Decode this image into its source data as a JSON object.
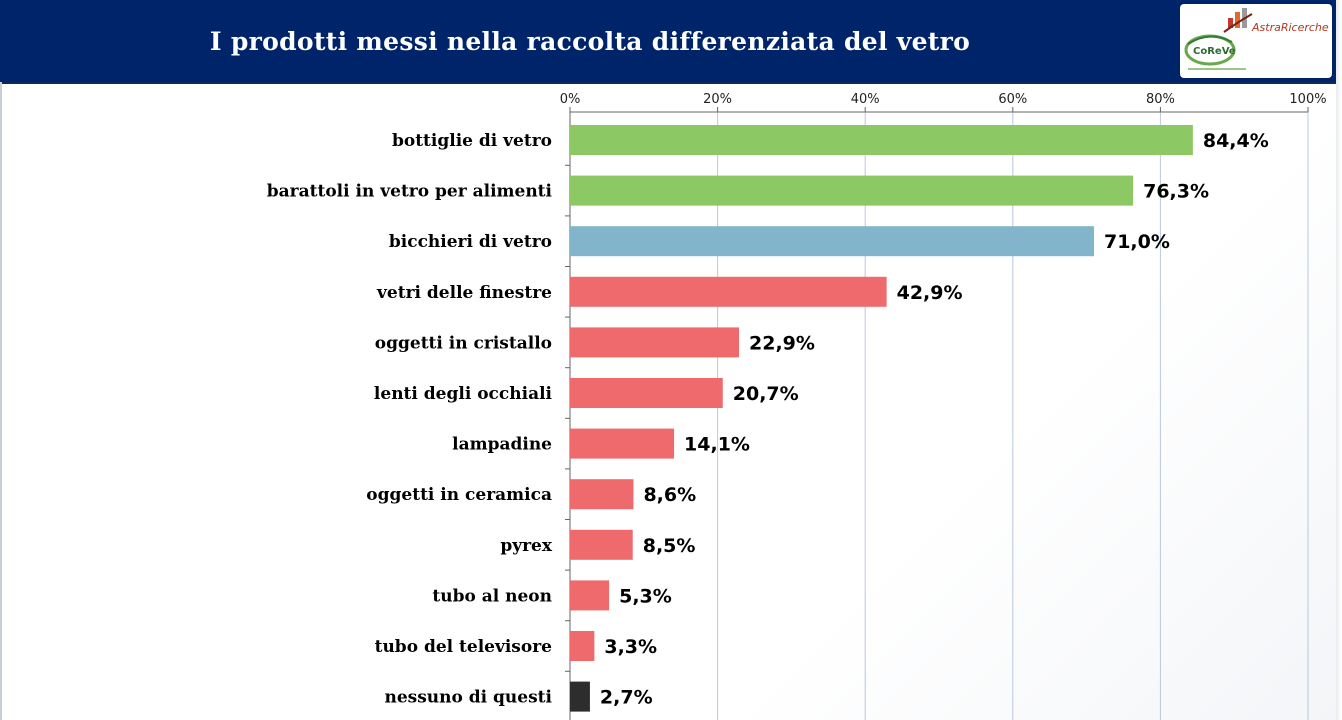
{
  "header": {
    "title": "I prodotti messi nella raccolta differenziata del vetro"
  },
  "logos": {
    "research_logo_text": "AstraRicerche",
    "coreve_logo_text": "CoReVe",
    "research_icon": "bar-chart-logo-icon",
    "coreve_icon": "coreve-logo-icon"
  },
  "colors": {
    "header_bg": "#00246a",
    "green": "#8cc863",
    "blue": "#82b5cc",
    "red": "#ee6a6c",
    "dark": "#2d2d2d",
    "grid": "#b8c8dc"
  },
  "chart_data": {
    "type": "bar",
    "orientation": "horizontal",
    "title": "I prodotti messi nella raccolta differenziata del vetro",
    "xlim": [
      0,
      100
    ],
    "x_ticks": [
      0,
      20,
      40,
      60,
      80,
      100
    ],
    "x_tick_labels": [
      "0%",
      "20%",
      "40%",
      "60%",
      "80%",
      "100%"
    ],
    "x_axis_position": "top",
    "grid": true,
    "categories": [
      "bottiglie di vetro",
      "barattoli in vetro per alimenti",
      "bicchieri di vetro",
      "vetri delle finestre",
      "oggetti in cristallo",
      "lenti degli occhiali",
      "lampadine",
      "oggetti in ceramica",
      "pyrex",
      "tubo al neon",
      "tubo del televisore",
      "nessuno di questi"
    ],
    "values": [
      84.4,
      76.3,
      71.0,
      42.9,
      22.9,
      20.7,
      14.1,
      8.6,
      8.5,
      5.3,
      3.3,
      2.7
    ],
    "value_labels": [
      "84,4%",
      "76,3%",
      "71,0%",
      "42,9%",
      "22,9%",
      "20,7%",
      "14,1%",
      "8,6%",
      "8,5%",
      "5,3%",
      "3,3%",
      "2,7%"
    ],
    "bar_colors": [
      "#8cc863",
      "#8cc863",
      "#82b5cc",
      "#ee6a6c",
      "#ee6a6c",
      "#ee6a6c",
      "#ee6a6c",
      "#ee6a6c",
      "#ee6a6c",
      "#ee6a6c",
      "#ee6a6c",
      "#2d2d2d"
    ]
  }
}
